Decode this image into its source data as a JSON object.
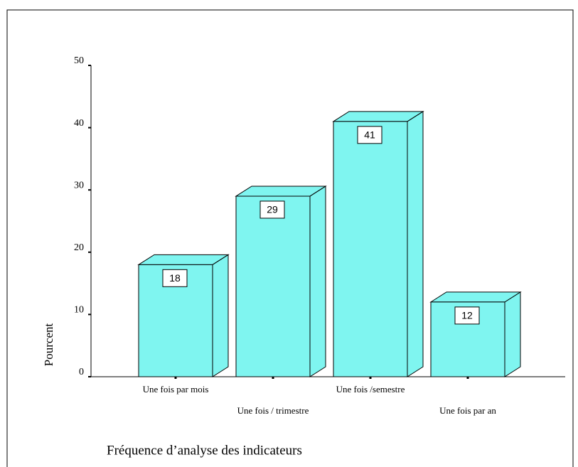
{
  "chart_data": {
    "type": "bar3d",
    "categories": [
      "Une fois par mois",
      "Une fois / trimestre",
      "Une fois /semestre",
      "Une fois par an"
    ],
    "values": [
      18,
      29,
      41,
      12
    ],
    "color": "#7ff5f0",
    "ylabel": "Pourcent",
    "xlabel": "Fréquence d’analyse des indicateurs",
    "ylim": [
      0,
      50
    ],
    "yticks": [
      0,
      10,
      20,
      30,
      40,
      50
    ]
  }
}
